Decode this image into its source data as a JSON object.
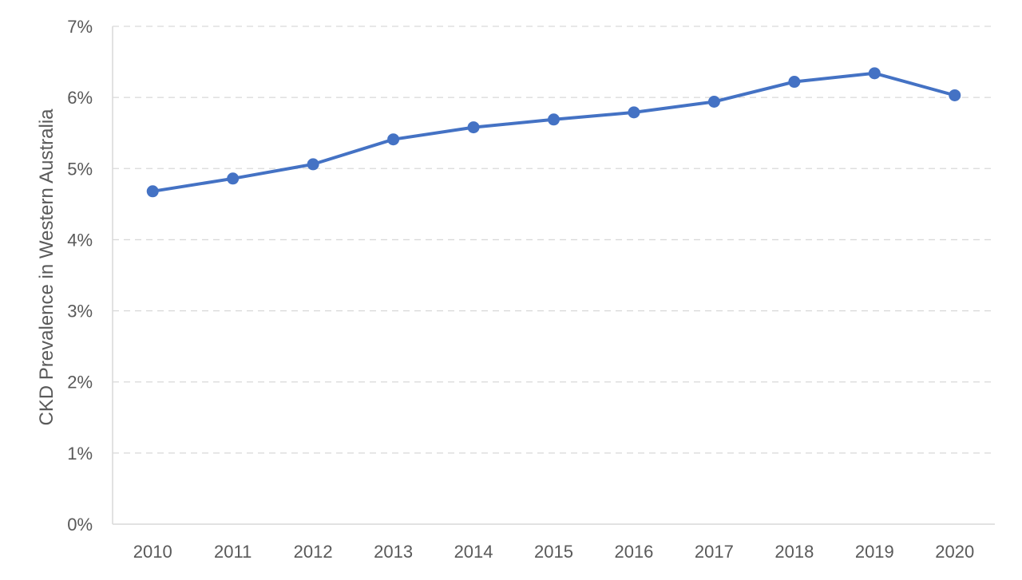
{
  "chart_data": {
    "type": "line",
    "title": "",
    "xlabel": "",
    "ylabel": "CKD Prevalence in Western Australia",
    "categories": [
      "2010",
      "2011",
      "2012",
      "2013",
      "2014",
      "2015",
      "2016",
      "2017",
      "2018",
      "2019",
      "2020"
    ],
    "series": [
      {
        "values": [
          4.68,
          4.86,
          5.06,
          5.41,
          5.58,
          5.69,
          5.79,
          5.94,
          6.22,
          6.34,
          6.03
        ],
        "color": "#4472c4"
      }
    ],
    "ylim": [
      0,
      7
    ],
    "yticks": [
      0,
      1,
      2,
      3,
      4,
      5,
      6,
      7
    ],
    "ytick_labels": [
      "0%",
      "1%",
      "2%",
      "3%",
      "4%",
      "5%",
      "6%",
      "7%"
    ],
    "grid": true,
    "legend": "none"
  }
}
